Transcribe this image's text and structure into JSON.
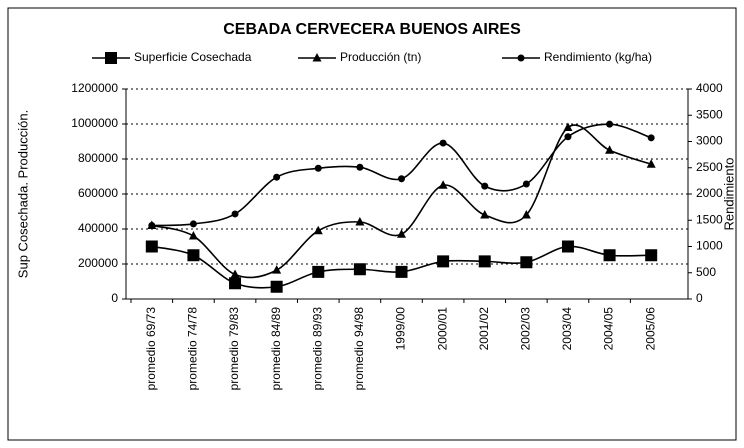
{
  "chart_data": {
    "type": "line",
    "title": "CEBADA CERVECERA BUENOS AIRES",
    "y_label": "Sup Cosechada. Producción.",
    "y2_label": "Rendimiento",
    "categories": [
      "promedio 69/73",
      "promedio 74/78",
      "promedio 79/83",
      "promedio 84/89",
      "promedio 89/93",
      "promedio 94/98",
      "1999/00",
      "2000/01",
      "2001/02",
      "2002/03",
      "2003/04",
      "2004/05",
      "2005/06"
    ],
    "series": [
      {
        "name": "Superficie Cosechada",
        "color": "#000000",
        "marker": "square",
        "values": [
          300000,
          250000,
          90000,
          70000,
          155000,
          170000,
          155000,
          215000,
          215000,
          210000,
          300000,
          250000,
          250000
        ]
      },
      {
        "name": "Producción (tn)",
        "color": "#000000",
        "marker": "triangle",
        "values": [
          420000,
          360000,
          140000,
          165000,
          390000,
          440000,
          370000,
          650000,
          480000,
          480000,
          980000,
          850000,
          770000
        ]
      },
      {
        "name": "Rendimiento (kg/ha)",
        "color": "#000000",
        "marker": "circle",
        "axis": "y2",
        "values": [
          1400,
          1430,
          1620,
          2320,
          2490,
          2510,
          2290,
          2970,
          2150,
          2190,
          3090,
          3330,
          3070
        ]
      }
    ],
    "ylim": [
      0,
      1200000
    ],
    "yticks": [
      0,
      200000,
      400000,
      600000,
      800000,
      1000000,
      1200000
    ],
    "y2lim": [
      0,
      4000
    ],
    "y2ticks": [
      0,
      500,
      1000,
      1500,
      2000,
      2500,
      3000,
      3500,
      4000
    ],
    "grid": true,
    "legend": "top"
  }
}
